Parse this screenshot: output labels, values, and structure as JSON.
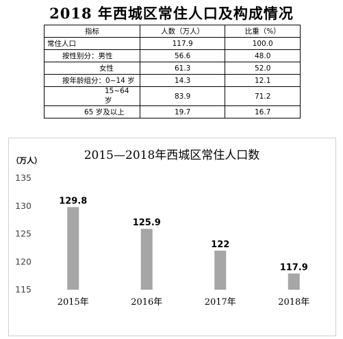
{
  "table": {
    "title": "2018 年西城区常住人口及构成情况",
    "headers": [
      "指标",
      "人数（万人）",
      "比重（%）"
    ],
    "rows": [
      {
        "indicator": "常住人口",
        "people": "117.9",
        "share": "100.0"
      },
      {
        "indicator": "按性别分：男性",
        "people": "56.6",
        "share": "48.0"
      },
      {
        "indicator": "女性",
        "people": "61.3",
        "share": "52.0"
      },
      {
        "indicator": "按年龄组分：0~14 岁",
        "people": "14.3",
        "share": "12.1"
      },
      {
        "indicator": "15~64 岁",
        "people": "83.9",
        "share": "71.2"
      },
      {
        "indicator": "65 岁及以上",
        "people": "19.7",
        "share": "16.7"
      }
    ]
  },
  "chart_data": {
    "type": "bar",
    "title": "2015—2018年西城区常住人口数",
    "ylabel": "（万人）",
    "xlabel": "",
    "categories": [
      "2015年",
      "2016年",
      "2017年",
      "2018年"
    ],
    "values": [
      129.8,
      125.9,
      122,
      117.9
    ],
    "data_labels": [
      "129.8",
      "125.9",
      "122",
      "117.9"
    ],
    "ylim": [
      115,
      135
    ],
    "yticks": [
      115,
      120,
      125,
      130,
      135
    ],
    "grid": false,
    "bar_color": "#a6a6a6"
  }
}
